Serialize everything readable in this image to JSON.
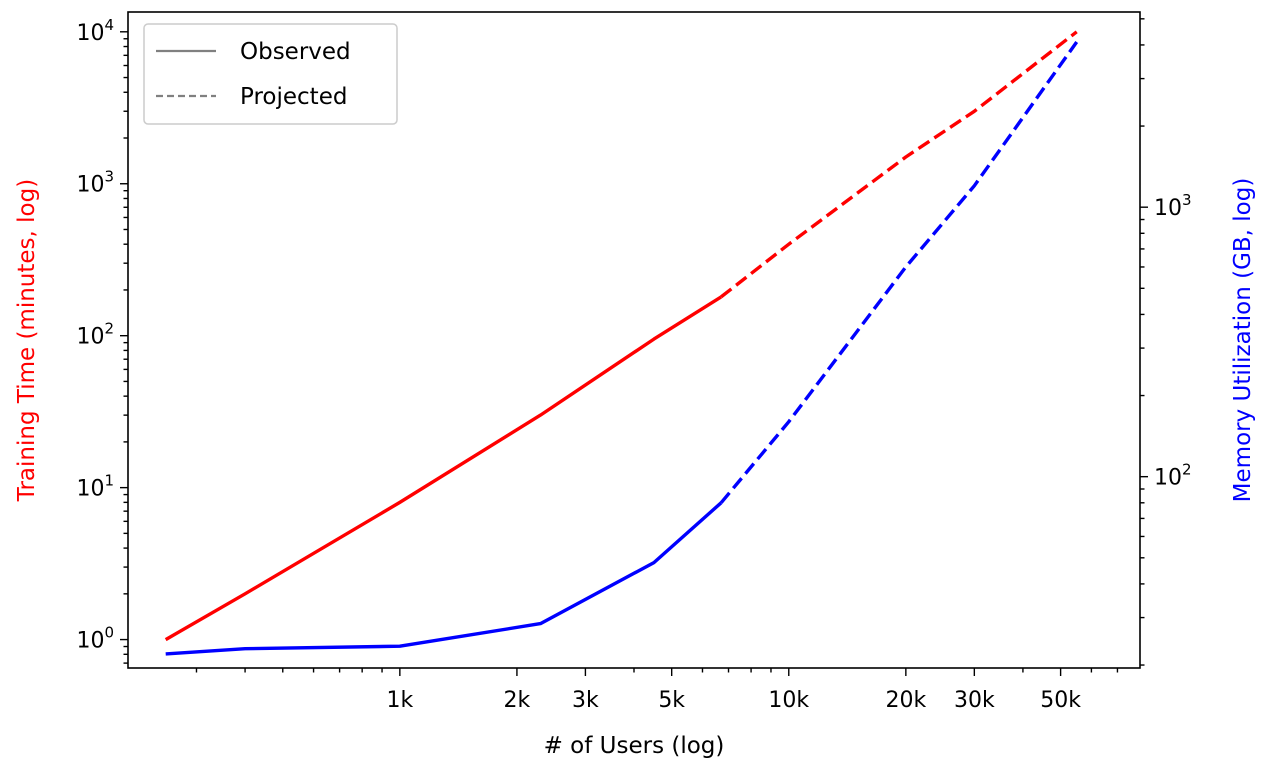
{
  "chart_data": {
    "type": "line",
    "xlabel": "# of Users (log)",
    "ylabel_left": "Training Time (minutes, log)",
    "ylabel_right": "Memory Utilization (GB, log)",
    "x_scale": "log",
    "y_left_scale": "log",
    "y_right_scale": "log",
    "xlim": [
      200,
      80000
    ],
    "ylim_left": [
      0.65,
      13500
    ],
    "ylim_right": [
      19.5,
      5300
    ],
    "x_ticks": [
      {
        "value": 1000,
        "label": "1k"
      },
      {
        "value": 2000,
        "label": "2k"
      },
      {
        "value": 3000,
        "label": "3k"
      },
      {
        "value": 5000,
        "label": "5k"
      },
      {
        "value": 10000,
        "label": "10k"
      },
      {
        "value": 20000,
        "label": "20k"
      },
      {
        "value": 30000,
        "label": "30k"
      },
      {
        "value": 50000,
        "label": "50k"
      }
    ],
    "y_left_ticks": [
      {
        "value": 1,
        "base": "10",
        "exp": "0"
      },
      {
        "value": 10,
        "base": "10",
        "exp": "1"
      },
      {
        "value": 100,
        "base": "10",
        "exp": "2"
      },
      {
        "value": 1000,
        "base": "10",
        "exp": "3"
      },
      {
        "value": 10000,
        "base": "10",
        "exp": "4"
      }
    ],
    "y_right_ticks": [
      {
        "value": 100,
        "base": "10",
        "exp": "2"
      },
      {
        "value": 1000,
        "base": "10",
        "exp": "3"
      }
    ],
    "legend": {
      "placement": "upper-left",
      "entries": [
        {
          "label": "Observed",
          "style": "solid"
        },
        {
          "label": "Projected",
          "style": "dashed"
        }
      ]
    },
    "colors": {
      "training": "#ff0000",
      "memory": "#0000ff",
      "legend_line": "#808080"
    },
    "series": [
      {
        "axis": "left",
        "color": "#ff0000",
        "style": "solid",
        "x": [
          250,
          400,
          1000,
          2300,
          4500,
          6700
        ],
        "y": [
          1.0,
          2.0,
          8.0,
          30,
          95,
          180
        ]
      },
      {
        "axis": "left",
        "color": "#ff0000",
        "style": "dashed",
        "x": [
          6700,
          10000,
          20000,
          30000,
          55000
        ],
        "y": [
          180,
          400,
          1500,
          3000,
          10000
        ]
      },
      {
        "axis": "right",
        "color": "#0000ff",
        "style": "solid",
        "x": [
          250,
          400,
          1000,
          2300,
          4500,
          6700
        ],
        "y": [
          22,
          23,
          23.5,
          28.5,
          48,
          80
        ]
      },
      {
        "axis": "right",
        "color": "#0000ff",
        "style": "dashed",
        "x": [
          6700,
          10000,
          20000,
          30000,
          55000
        ],
        "y": [
          80,
          160,
          600,
          1200,
          4100
        ]
      }
    ]
  }
}
